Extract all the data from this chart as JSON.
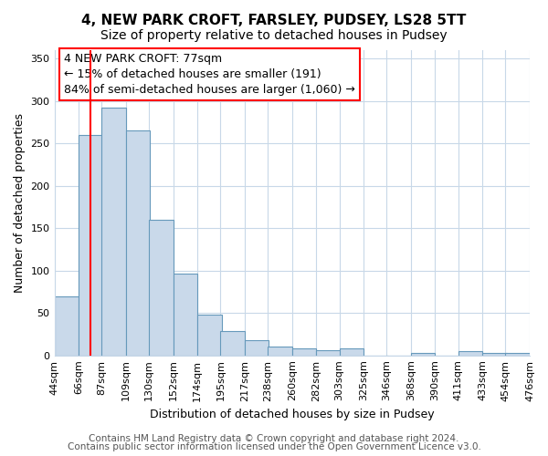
{
  "title": "4, NEW PARK CROFT, FARSLEY, PUDSEY, LS28 5TT",
  "subtitle": "Size of property relative to detached houses in Pudsey",
  "xlabel": "Distribution of detached houses by size in Pudsey",
  "ylabel": "Number of detached properties",
  "bar_left_edges": [
    44,
    66,
    87,
    109,
    130,
    152,
    174,
    195,
    217,
    238,
    260,
    282,
    303,
    325,
    346,
    368,
    390,
    411,
    433,
    454
  ],
  "bar_heights": [
    70,
    260,
    292,
    265,
    160,
    97,
    48,
    29,
    18,
    10,
    8,
    6,
    8,
    0,
    0,
    3,
    0,
    5,
    3,
    3
  ],
  "bin_width": 22,
  "bar_color": "#c9d9ea",
  "bar_edge_color": "#6699bb",
  "tick_labels": [
    "44sqm",
    "66sqm",
    "87sqm",
    "109sqm",
    "130sqm",
    "152sqm",
    "174sqm",
    "195sqm",
    "217sqm",
    "238sqm",
    "260sqm",
    "282sqm",
    "303sqm",
    "325sqm",
    "346sqm",
    "368sqm",
    "390sqm",
    "411sqm",
    "433sqm",
    "454sqm",
    "476sqm"
  ],
  "vline_x": 77,
  "vline_color": "red",
  "ylim": [
    0,
    360
  ],
  "yticks": [
    0,
    50,
    100,
    150,
    200,
    250,
    300,
    350
  ],
  "annotation_line1": "4 NEW PARK CROFT: 77sqm",
  "annotation_line2": "← 15% of detached houses are smaller (191)",
  "annotation_line3": "84% of semi-detached houses are larger (1,060) →",
  "footer_line1": "Contains HM Land Registry data © Crown copyright and database right 2024.",
  "footer_line2": "Contains public sector information licensed under the Open Government Licence v3.0.",
  "fig_bg_color": "#ffffff",
  "plot_bg_color": "#ffffff",
  "grid_color": "#c8d8e8",
  "title_fontsize": 11,
  "subtitle_fontsize": 10,
  "axis_label_fontsize": 9,
  "tick_fontsize": 8,
  "annotation_fontsize": 9,
  "footer_fontsize": 7.5
}
